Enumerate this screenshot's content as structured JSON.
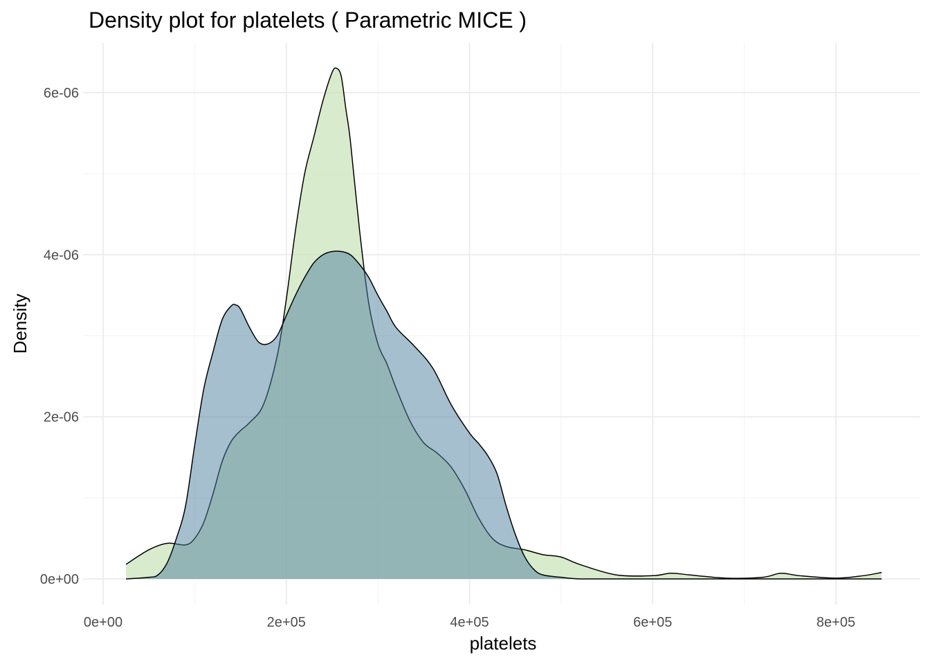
{
  "chart_data": {
    "type": "area",
    "title": "Density plot for platelets ( Parametric MICE )",
    "xlabel": "platelets",
    "ylabel": "Density",
    "xlim": [
      0,
      850000
    ],
    "ylim": [
      -3e-07,
      6.5e-06
    ],
    "x_ticks": [
      0,
      200000,
      400000,
      600000,
      800000
    ],
    "x_tick_labels": [
      "0e+00",
      "2e+05",
      "4e+05",
      "6e+05",
      "8e+05"
    ],
    "y_ticks": [
      0,
      2e-06,
      4e-06,
      6e-06
    ],
    "y_tick_labels": [
      "0e+00",
      "2e-06",
      "4e-06",
      "6e-06"
    ],
    "grid": true,
    "legend": "none",
    "series": [
      {
        "color": "#c7e3b8",
        "opacity": 0.7,
        "x": [
          25000,
          50000,
          70000,
          90000,
          100000,
          110000,
          120000,
          130000,
          140000,
          150000,
          160000,
          175000,
          190000,
          200000,
          210000,
          220000,
          230000,
          240000,
          250000,
          255000,
          260000,
          265000,
          270000,
          280000,
          290000,
          300000,
          310000,
          320000,
          335000,
          350000,
          365000,
          380000,
          395000,
          410000,
          425000,
          440000,
          460000,
          480000,
          500000,
          520000,
          560000,
          600000,
          620000,
          640000,
          680000,
          720000,
          740000,
          760000,
          800000,
          830000,
          850000
        ],
        "values": [
          1.8e-07,
          3.6e-07,
          4.4e-07,
          4.2e-07,
          5e-07,
          7e-07,
          1.05e-06,
          1.45e-06,
          1.7e-06,
          1.83e-06,
          1.93e-06,
          2.15e-06,
          2.75e-06,
          3.45e-06,
          4.3e-06,
          5e-06,
          5.45e-06,
          5.9e-06,
          6.25e-06,
          6.3e-06,
          6.2e-06,
          5.8e-06,
          5.4e-06,
          4.3e-06,
          3.4e-06,
          2.9e-06,
          2.65e-06,
          2.35e-06,
          1.95e-06,
          1.68e-06,
          1.55e-06,
          1.38e-06,
          1.1e-06,
          7.5e-07,
          5e-07,
          4e-07,
          3.6e-07,
          3e-07,
          2.7e-07,
          1.8e-07,
          5e-08,
          4e-08,
          7e-08,
          5e-08,
          1e-08,
          2e-08,
          7e-08,
          4e-08,
          1e-08,
          4e-08,
          8e-08
        ]
      },
      {
        "color": "#4d7f9f",
        "opacity": 0.5,
        "x": [
          25000,
          50000,
          60000,
          70000,
          80000,
          90000,
          100000,
          110000,
          120000,
          130000,
          140000,
          145000,
          150000,
          160000,
          170000,
          180000,
          190000,
          200000,
          210000,
          220000,
          230000,
          240000,
          250000,
          260000,
          270000,
          280000,
          290000,
          300000,
          310000,
          320000,
          340000,
          360000,
          380000,
          400000,
          410000,
          420000,
          430000,
          440000,
          450000,
          460000,
          470000,
          480000,
          500000,
          520000,
          560000,
          600000,
          700000,
          800000,
          850000
        ],
        "values": [
          0.0,
          2e-08,
          5e-08,
          2e-07,
          5e-07,
          9e-07,
          1.65e-06,
          2.35e-06,
          2.8e-06,
          3.2e-06,
          3.37e-06,
          3.38e-06,
          3.33e-06,
          3.1e-06,
          2.92e-06,
          2.9e-06,
          3e-06,
          3.25e-06,
          3.5e-06,
          3.72e-06,
          3.9e-06,
          4e-06,
          4.04e-06,
          4.04e-06,
          4e-06,
          3.88e-06,
          3.72e-06,
          3.5e-06,
          3.3e-06,
          3.1e-06,
          2.87e-06,
          2.6e-06,
          2.15e-06,
          1.8e-06,
          1.67e-06,
          1.52e-06,
          1.3e-06,
          9e-07,
          5.5e-07,
          2.8e-07,
          1.2e-07,
          5e-08,
          2e-08,
          0.0,
          0.0,
          0.0,
          0.0,
          0.0,
          0.0
        ]
      }
    ]
  }
}
